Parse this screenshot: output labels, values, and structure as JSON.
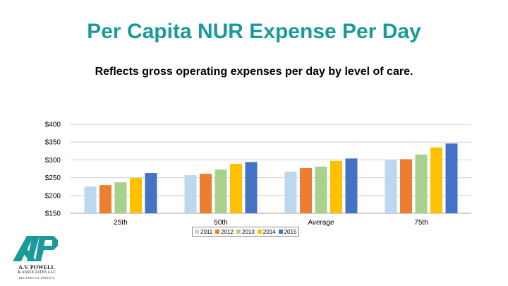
{
  "slide": {
    "title": "Per Capita NUR Expense Per Day",
    "subtitle": "Reflects gross operating expenses per day by level of care."
  },
  "logo": {
    "monogram": "AVP",
    "name": "A.V. POWELL",
    "company": "& ASSOCIATES LLC",
    "tagline": "DECADES OF SERVICE"
  },
  "colors": {
    "title": "#1b9a9a",
    "series": [
      "#bdd7ee",
      "#ed7d31",
      "#a9d18e",
      "#ffc000",
      "#4472c4"
    ],
    "logo": "#1b9a9a"
  },
  "chart_data": {
    "type": "bar",
    "categories": [
      "25th",
      "50th",
      "Average",
      "75th"
    ],
    "series": [
      {
        "name": "2011",
        "values": [
          225,
          257,
          267,
          300
        ]
      },
      {
        "name": "2012",
        "values": [
          229,
          261,
          277,
          302
        ]
      },
      {
        "name": "2013",
        "values": [
          237,
          273,
          281,
          315
        ]
      },
      {
        "name": "2014",
        "values": [
          249,
          289,
          297,
          335
        ]
      },
      {
        "name": "2015",
        "values": [
          263,
          294,
          304,
          346
        ]
      }
    ],
    "ylim": [
      150,
      400
    ],
    "yticks": [
      150,
      200,
      250,
      300,
      350,
      400
    ],
    "ytick_labels": [
      "$150",
      "$200",
      "$250",
      "$300",
      "$350",
      "$400"
    ],
    "grid": true,
    "legend": "bottom"
  }
}
